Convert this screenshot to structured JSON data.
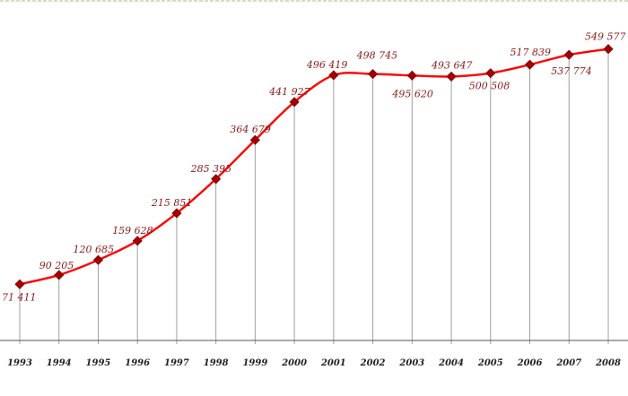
{
  "chart_data": {
    "type": "line",
    "title": "",
    "xlabel": "",
    "ylabel": "",
    "categories": [
      "1993",
      "1994",
      "1995",
      "1996",
      "1997",
      "1998",
      "1999",
      "2000",
      "2001",
      "2002",
      "2003",
      "2004",
      "2005",
      "2006",
      "2007",
      "2008"
    ],
    "series": [
      {
        "values": [
          71411,
          90205,
          120685,
          159628,
          215851,
          285395,
          364679,
          441927,
          496419,
          498745,
          495620,
          493647,
          500508,
          517839,
          537774,
          549577
        ],
        "labels": [
          "71 411",
          "90 205",
          "120 685",
          "159 628",
          "215 851",
          "285 395",
          "364 679",
          "441 927",
          "496 419",
          "498 745",
          "495 620",
          "493 647",
          "500 508",
          "517 839",
          "537 774",
          "549 577"
        ]
      }
    ],
    "ylim": [
      30000,
      580000
    ],
    "grid": false,
    "legend": "none",
    "colors": {
      "line": "#ff0000",
      "marker": "#a50000",
      "label": "#8b1a1a",
      "drop_line": "#a0a0a0",
      "axis": "#555555",
      "top_border": "#d8dcc0"
    }
  }
}
